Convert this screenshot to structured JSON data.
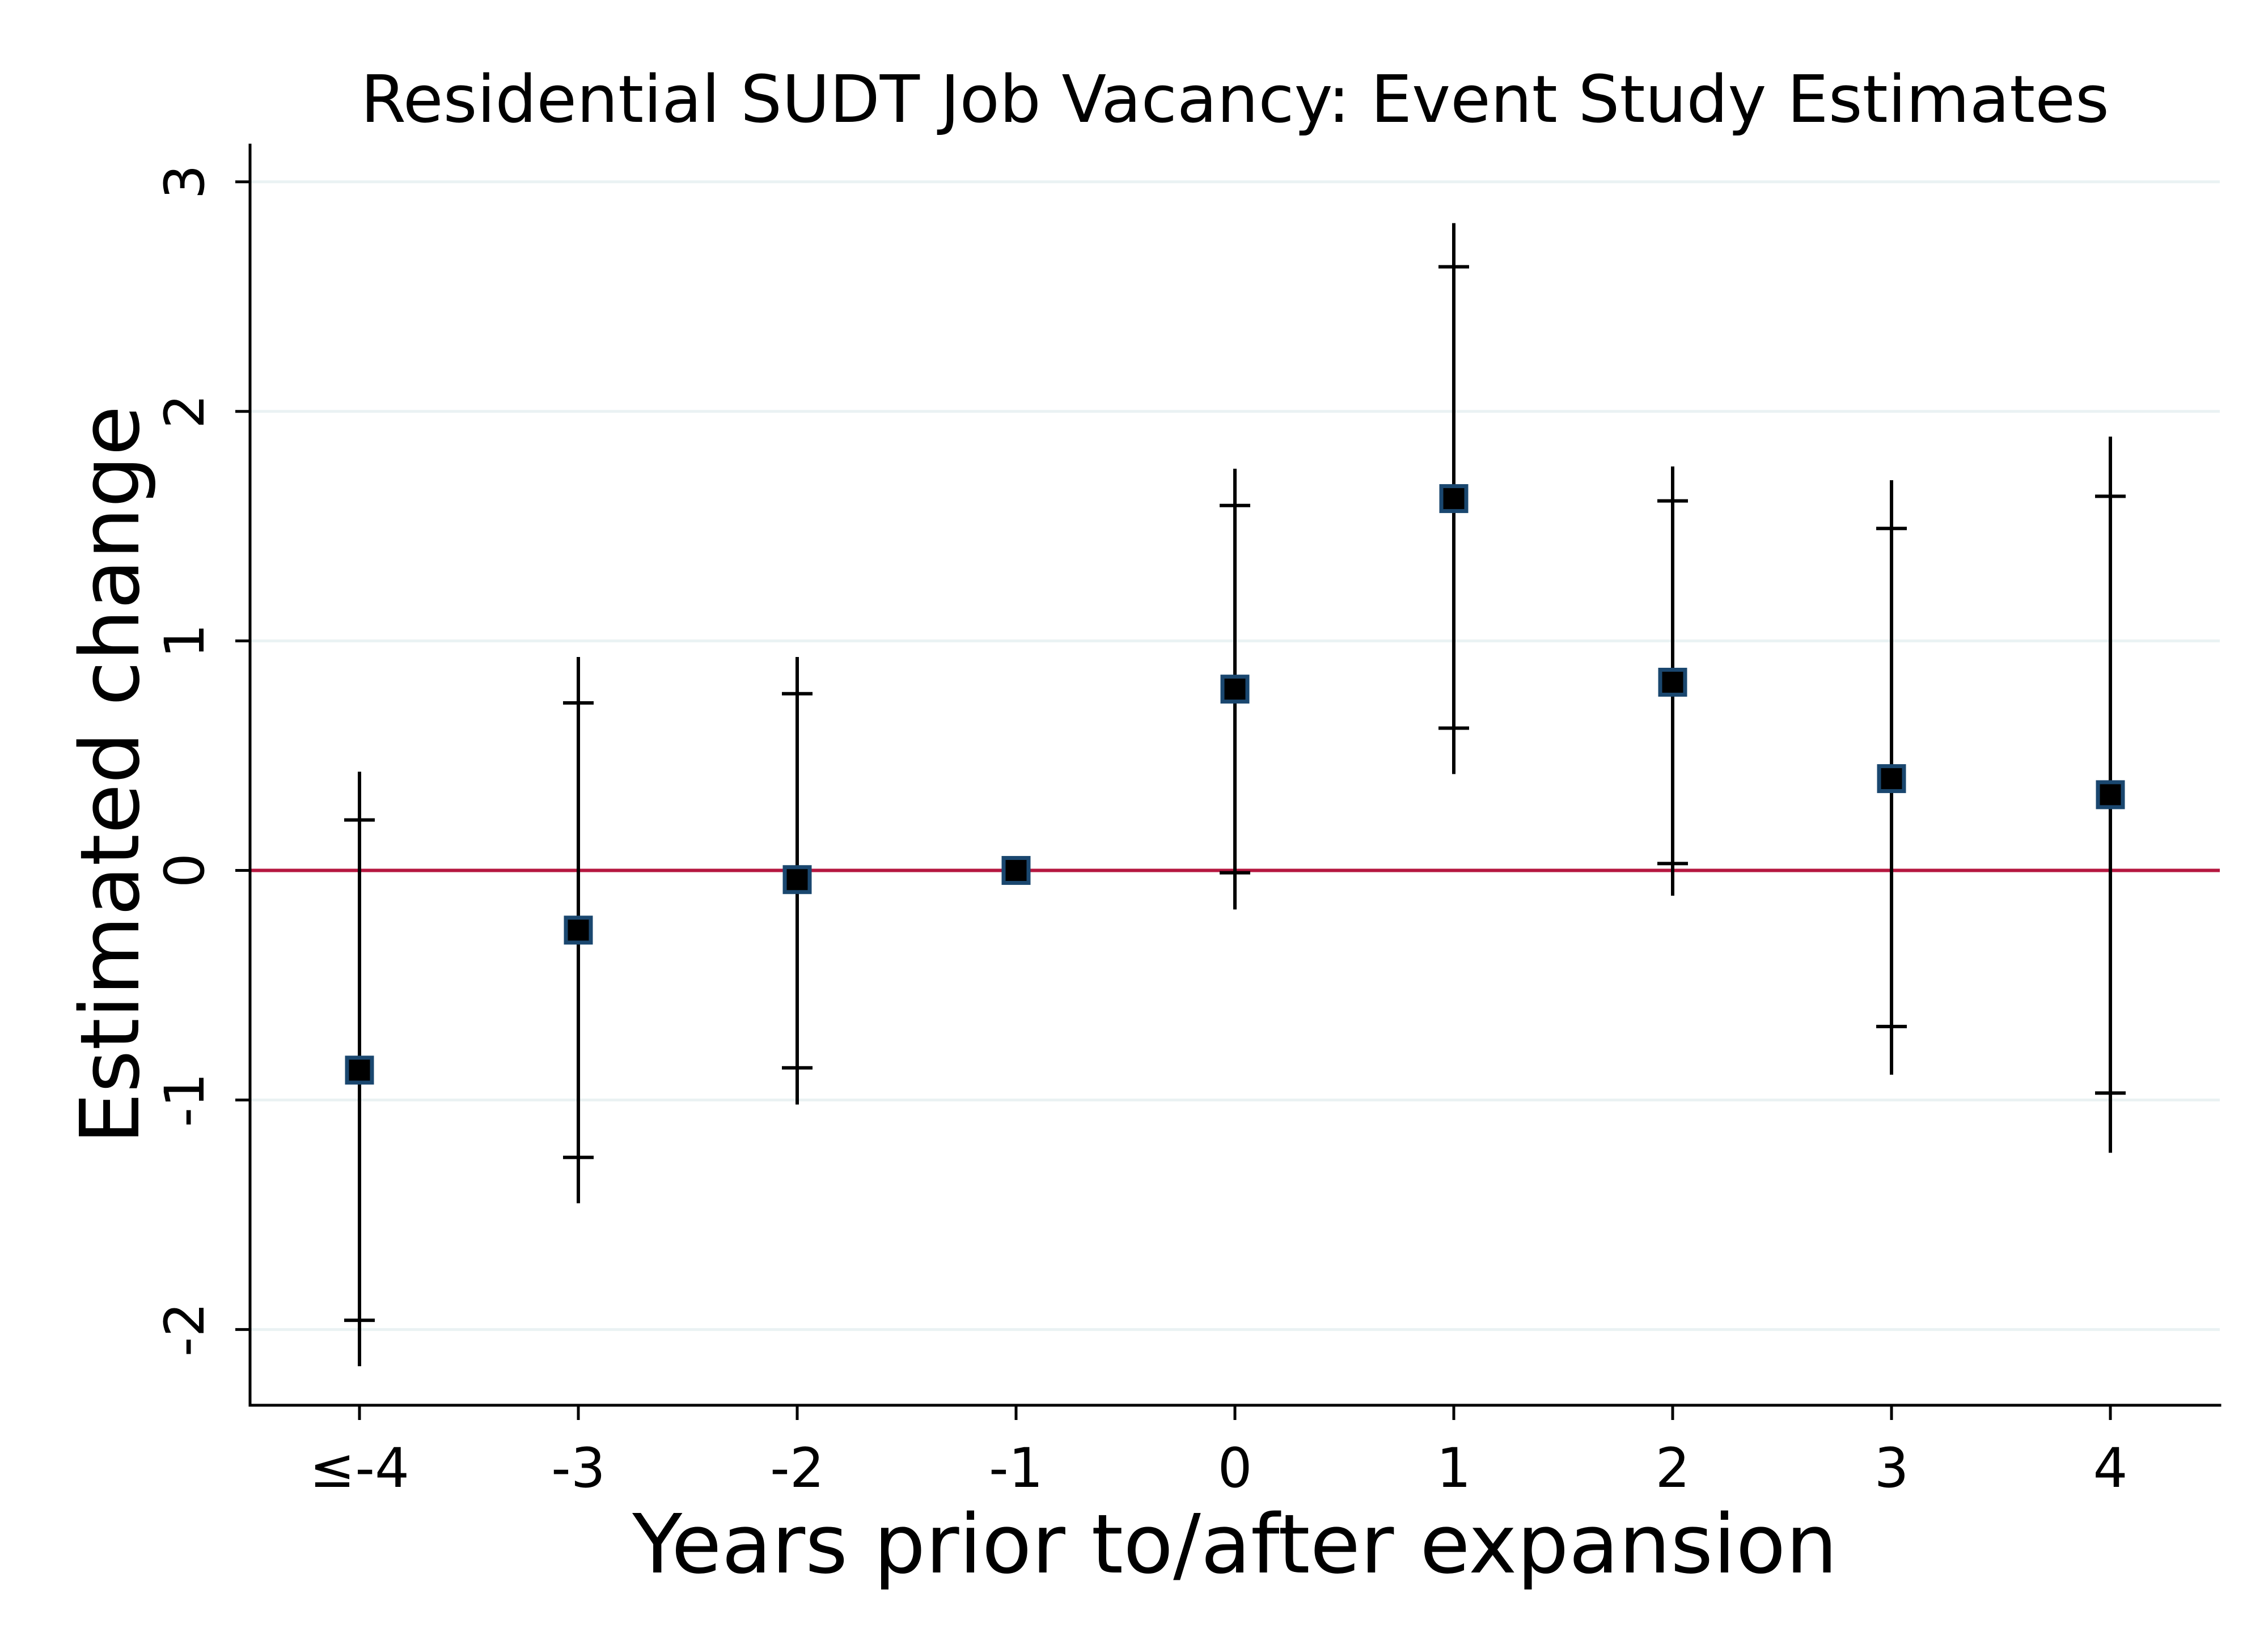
{
  "chart_data": {
    "type": "scatter",
    "title": "Residential SUDT Job Vacancy: Event Study Estimates",
    "xlabel": "Years prior to/after expansion",
    "ylabel": "Estimated change",
    "categories": [
      "≤-4",
      "-3",
      "-2",
      "-1",
      "0",
      "1",
      "2",
      "3",
      "4"
    ],
    "y_ticks": [
      3,
      2,
      1,
      0,
      -1,
      -2
    ],
    "ylim": [
      -2.33,
      3.16
    ],
    "grid": true,
    "legend": "none",
    "reference_line": {
      "y": 0
    },
    "estimates": [
      -0.87,
      -0.26,
      -0.04,
      0.0,
      0.79,
      1.62,
      0.82,
      0.4,
      0.33
    ],
    "ci_outer": [
      [
        -2.16,
        0.43
      ],
      [
        -1.45,
        0.93
      ],
      [
        -1.02,
        0.93
      ],
      null,
      [
        -0.17,
        1.75
      ],
      [
        0.42,
        2.82
      ],
      [
        -0.11,
        1.76
      ],
      [
        -0.89,
        1.7
      ],
      [
        -1.23,
        1.89
      ]
    ],
    "ci_inner": [
      [
        -1.96,
        0.22
      ],
      [
        -1.25,
        0.73
      ],
      [
        -0.86,
        0.77
      ],
      null,
      [
        -0.01,
        1.59
      ],
      [
        0.62,
        2.63
      ],
      [
        0.03,
        1.61
      ],
      [
        -0.68,
        1.49
      ],
      [
        -0.97,
        1.63
      ]
    ],
    "colors": {
      "marker_fill": "#000000",
      "marker_outline": "#1a476f",
      "ci": "#000000",
      "reference_line": "#b5173f",
      "grid": "#eaf2f3",
      "axis": "#000000"
    }
  }
}
